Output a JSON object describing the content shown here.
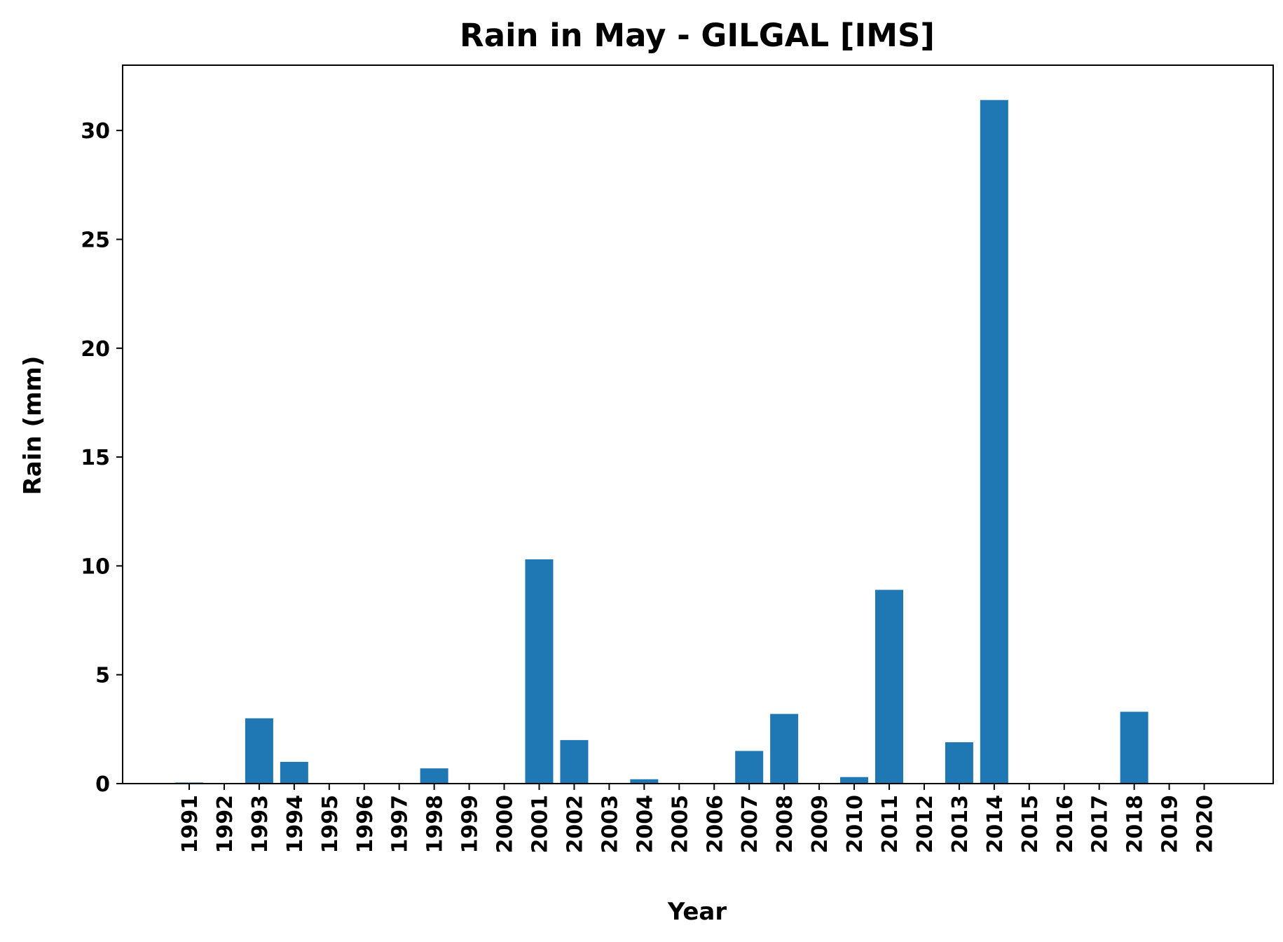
{
  "chart_data": {
    "type": "bar",
    "title": "Rain in May - GILGAL [IMS]",
    "xlabel": "Year",
    "ylabel": "Rain (mm)",
    "categories": [
      "1991",
      "1992",
      "1993",
      "1994",
      "1995",
      "1996",
      "1997",
      "1998",
      "1999",
      "2000",
      "2001",
      "2002",
      "2003",
      "2004",
      "2005",
      "2006",
      "2007",
      "2008",
      "2009",
      "2010",
      "2011",
      "2012",
      "2013",
      "2014",
      "2015",
      "2016",
      "2017",
      "2018",
      "2019",
      "2020"
    ],
    "values": [
      0.05,
      0,
      3.0,
      1.0,
      0,
      0,
      0,
      0.7,
      0,
      0,
      10.3,
      2.0,
      0,
      0.2,
      0,
      0,
      1.5,
      3.2,
      0,
      0.3,
      8.9,
      0,
      1.9,
      31.4,
      0,
      0,
      0,
      3.3,
      0,
      0
    ],
    "yticks": [
      0,
      5,
      10,
      15,
      20,
      25,
      30
    ],
    "ylim": [
      0,
      33
    ],
    "bar_color": "#1f77b4",
    "grid": false,
    "legend": "none"
  }
}
